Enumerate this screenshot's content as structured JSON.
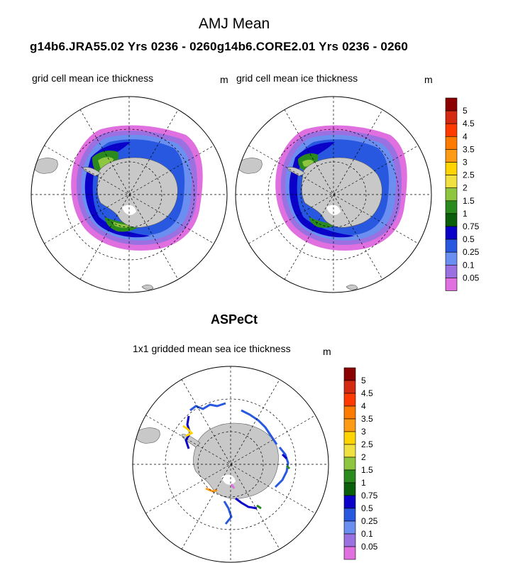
{
  "figure": {
    "title": "AMJ Mean",
    "subtitle": "g14b6.JRA55.02  Yrs 0236 - 0260g14b6.CORE2.01  Yrs 0236 - 0260"
  },
  "panels": [
    {
      "label": "grid cell mean ice thickness",
      "unit": "m"
    },
    {
      "label": "grid cell mean ice thickness",
      "unit": "m"
    }
  ],
  "observation": {
    "title": "ASPeCt",
    "label": "1x1 gridded mean sea ice thickness",
    "unit": "m"
  },
  "colorbar": {
    "levels": [
      "5",
      "4.5",
      "4",
      "3.5",
      "3",
      "2.5",
      "2",
      "1.5",
      "1",
      "0.75",
      "0.5",
      "0.25",
      "0.1",
      "0.05"
    ],
    "colors": [
      "#8b0000",
      "#d42a12",
      "#ff3a00",
      "#ff7a00",
      "#ff9a14",
      "#ffd400",
      "#f0e040",
      "#8ec63f",
      "#2a8a1e",
      "#0b5f0b",
      "#0a00c8",
      "#2858e0",
      "#6b8ff0",
      "#9b70e0",
      "#e070e0"
    ]
  },
  "colors": {
    "land": "#c8c8c8",
    "grid": "#000000"
  }
}
